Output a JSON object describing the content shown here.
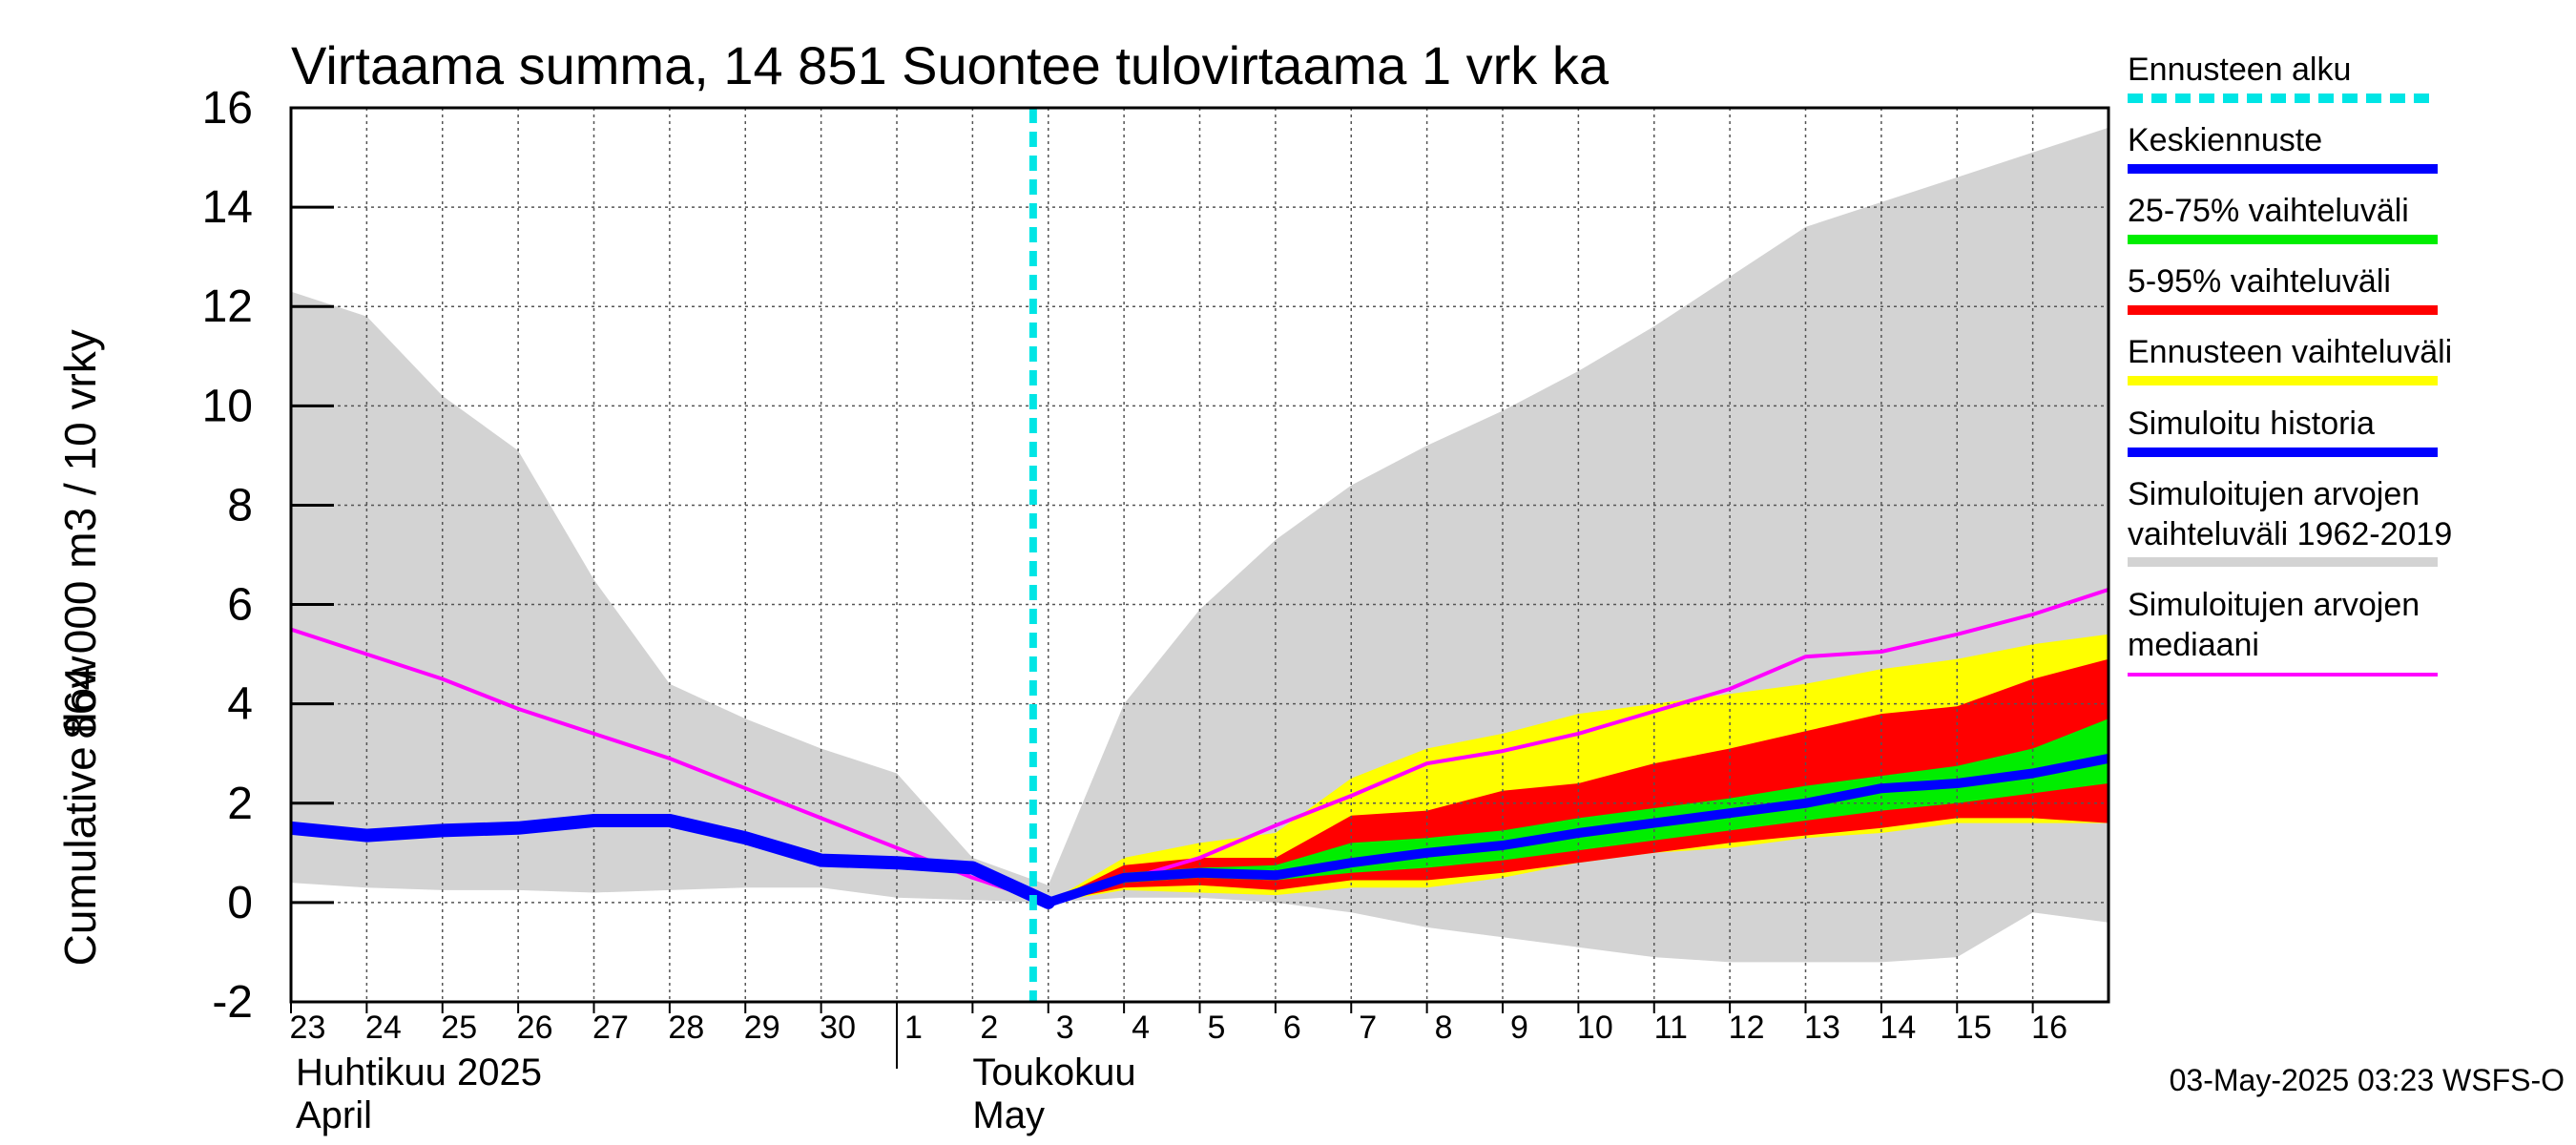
{
  "chart_data": {
    "type": "area",
    "title": "Virtaama summa, 14 851 Suontee tulovirtaama 1 vrk ka",
    "ylabel_fi": "864 000 m3 / 10 vrky",
    "ylabel_en": "Cumulative flow",
    "ylim": [
      -2,
      16
    ],
    "yticks": [
      -2,
      0,
      2,
      4,
      6,
      8,
      10,
      12,
      14,
      16
    ],
    "grid": true,
    "legend_position": "right",
    "x_ticks": [
      "23",
      "24",
      "25",
      "26",
      "27",
      "28",
      "29",
      "30",
      "1",
      "2",
      "3",
      "4",
      "5",
      "6",
      "7",
      "8",
      "9",
      "10",
      "11",
      "12",
      "13",
      "14",
      "15",
      "16"
    ],
    "months": [
      {
        "fi": "Huhtikuu  2025",
        "en": "April",
        "start_index": 0
      },
      {
        "fi": "Toukokuu",
        "en": "May",
        "start_index": 8
      }
    ],
    "forecast_start_index": 9.8,
    "x_max_index": 24,
    "series": [
      {
        "name": "Simuloitujen arvojen vaihteluväli 1962-2019",
        "kind": "band",
        "color": "#d3d3d3",
        "x": [
          0,
          1,
          2,
          3,
          4,
          5,
          6,
          7,
          8,
          9,
          10,
          11,
          12,
          13,
          14,
          15,
          16,
          17,
          18,
          19,
          20,
          21,
          22,
          23,
          24
        ],
        "low": [
          0.4,
          0.3,
          0.25,
          0.25,
          0.2,
          0.25,
          0.3,
          0.3,
          0.1,
          0.05,
          0.0,
          0.1,
          0.1,
          0.0,
          -0.2,
          -0.5,
          -0.7,
          -0.9,
          -1.1,
          -1.2,
          -1.2,
          -1.2,
          -1.1,
          -0.2,
          -0.4
        ],
        "high": [
          12.3,
          11.8,
          10.2,
          9.1,
          6.5,
          4.4,
          3.7,
          3.1,
          2.6,
          0.9,
          0.35,
          4.0,
          5.9,
          7.3,
          8.4,
          9.2,
          9.9,
          10.7,
          11.6,
          12.6,
          13.6,
          14.1,
          14.6,
          15.1,
          15.6
        ]
      },
      {
        "name": "Ennusteen vaihteluväli",
        "kind": "band",
        "color": "#ffff00",
        "x": [
          10,
          11,
          12,
          13,
          14,
          15,
          16,
          17,
          18,
          19,
          20,
          21,
          22,
          23,
          24
        ],
        "low": [
          0.0,
          0.25,
          0.2,
          0.15,
          0.3,
          0.3,
          0.5,
          0.8,
          1.0,
          1.1,
          1.3,
          1.4,
          1.6,
          1.6,
          1.6
        ],
        "high": [
          0.0,
          0.9,
          1.2,
          1.4,
          2.5,
          3.1,
          3.4,
          3.8,
          4.0,
          4.2,
          4.4,
          4.7,
          4.9,
          5.2,
          5.4
        ]
      },
      {
        "name": "5-95% vaihteluväli",
        "kind": "band",
        "color": "#ff0000",
        "x": [
          10,
          11,
          12,
          13,
          14,
          15,
          16,
          17,
          18,
          19,
          20,
          21,
          22,
          23,
          24
        ],
        "low": [
          0.0,
          0.3,
          0.35,
          0.25,
          0.45,
          0.45,
          0.6,
          0.8,
          1.0,
          1.2,
          1.35,
          1.5,
          1.7,
          1.7,
          1.6
        ],
        "high": [
          0.0,
          0.75,
          0.9,
          0.9,
          1.75,
          1.85,
          2.25,
          2.4,
          2.8,
          3.1,
          3.45,
          3.8,
          3.95,
          4.5,
          4.9
        ]
      },
      {
        "name": "25-75% vaihteluväli",
        "kind": "band",
        "color": "#00ee00",
        "x": [
          10,
          11,
          12,
          13,
          14,
          15,
          16,
          17,
          18,
          19,
          20,
          21,
          22,
          23,
          24
        ],
        "low": [
          0.0,
          0.4,
          0.5,
          0.45,
          0.6,
          0.7,
          0.85,
          1.05,
          1.25,
          1.45,
          1.65,
          1.85,
          2.0,
          2.2,
          2.4
        ],
        "high": [
          0.0,
          0.6,
          0.7,
          0.75,
          1.2,
          1.3,
          1.45,
          1.7,
          1.9,
          2.1,
          2.35,
          2.55,
          2.75,
          3.1,
          3.7
        ]
      },
      {
        "name": "Simuloitujen arvojen mediaani",
        "kind": "line",
        "color": "#ff00ff",
        "width": 4,
        "x": [
          0,
          1,
          2,
          3,
          4,
          5,
          6,
          7,
          8,
          9,
          10,
          11,
          12,
          13,
          14,
          15,
          16,
          17,
          18,
          19,
          20,
          21,
          22,
          23,
          24
        ],
        "y": [
          5.5,
          5.0,
          4.5,
          3.9,
          3.4,
          2.9,
          2.3,
          1.7,
          1.1,
          0.5,
          0.0,
          0.45,
          0.9,
          1.55,
          2.15,
          2.8,
          3.05,
          3.4,
          3.85,
          4.3,
          4.95,
          5.05,
          5.4,
          5.8,
          6.3
        ]
      },
      {
        "name": "Simuloitu historia",
        "kind": "line",
        "color": "#0000ff",
        "width": 14,
        "x": [
          0,
          1,
          2,
          3,
          4,
          5,
          6,
          7,
          8,
          9,
          10
        ],
        "y": [
          1.5,
          1.35,
          1.45,
          1.5,
          1.65,
          1.65,
          1.3,
          0.85,
          0.8,
          0.7,
          0.0
        ]
      },
      {
        "name": "Keskiennuste",
        "kind": "line",
        "color": "#0000ff",
        "width": 10,
        "x": [
          10,
          11,
          12,
          13,
          14,
          15,
          16,
          17,
          18,
          19,
          20,
          21,
          22,
          23,
          24
        ],
        "y": [
          0.0,
          0.5,
          0.6,
          0.55,
          0.8,
          1.0,
          1.15,
          1.4,
          1.6,
          1.8,
          2.0,
          2.3,
          2.4,
          2.6,
          2.9
        ]
      }
    ],
    "legend": [
      {
        "label": "Ennusteen alku",
        "color": "#00e5e5",
        "style": "dashed"
      },
      {
        "label": "Keskiennuste",
        "color": "#0000ff",
        "style": "solid"
      },
      {
        "label": "25-75% vaihteluväli",
        "color": "#00ee00",
        "style": "solid"
      },
      {
        "label": "5-95% vaihteluväli",
        "color": "#ff0000",
        "style": "solid"
      },
      {
        "label": "Ennusteen vaihteluväli",
        "color": "#ffff00",
        "style": "solid"
      },
      {
        "label": "Simuloitu historia",
        "color": "#0000ff",
        "style": "solid"
      },
      {
        "label": "Simuloitujen arvojen\nvaihteluväli 1962-2019",
        "color": "#d3d3d3",
        "style": "solid"
      },
      {
        "label": "Simuloitujen arvojen\nmediaani",
        "color": "#ff00ff",
        "style": "thin"
      }
    ],
    "footer": "03-May-2025 03:23 WSFS-O"
  }
}
